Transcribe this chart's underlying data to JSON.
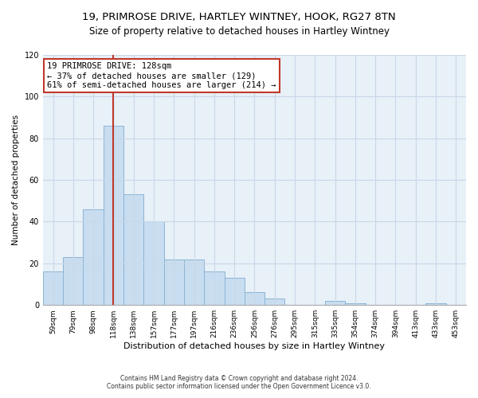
{
  "title": "19, PRIMROSE DRIVE, HARTLEY WINTNEY, HOOK, RG27 8TN",
  "subtitle": "Size of property relative to detached houses in Hartley Wintney",
  "xlabel": "Distribution of detached houses by size in Hartley Wintney",
  "ylabel": "Number of detached properties",
  "bin_labels": [
    "59sqm",
    "79sqm",
    "98sqm",
    "118sqm",
    "138sqm",
    "157sqm",
    "177sqm",
    "197sqm",
    "216sqm",
    "236sqm",
    "256sqm",
    "276sqm",
    "295sqm",
    "315sqm",
    "335sqm",
    "354sqm",
    "374sqm",
    "394sqm",
    "413sqm",
    "433sqm",
    "453sqm"
  ],
  "bar_values": [
    16,
    23,
    46,
    86,
    53,
    40,
    22,
    22,
    16,
    13,
    6,
    3,
    0,
    0,
    2,
    1,
    0,
    0,
    0,
    1,
    0
  ],
  "bar_color": "#c9ddf0",
  "bar_edge_color": "#8ab4d4",
  "vline_color": "#c0392b",
  "annotation_title": "19 PRIMROSE DRIVE: 128sqm",
  "annotation_line2": "← 37% of detached houses are smaller (129)",
  "annotation_line3": "61% of semi-detached houses are larger (214) →",
  "annotation_box_color": "#ffffff",
  "annotation_box_edge": "#c0392b",
  "ylim": [
    0,
    120
  ],
  "yticks": [
    0,
    20,
    40,
    60,
    80,
    100,
    120
  ],
  "footer1": "Contains HM Land Registry data © Crown copyright and database right 2024.",
  "footer2": "Contains public sector information licensed under the Open Government Licence v3.0.",
  "bg_color": "#e8f0f8",
  "fig_bg_color": "#ffffff",
  "grid_color": "#c8d8e8"
}
